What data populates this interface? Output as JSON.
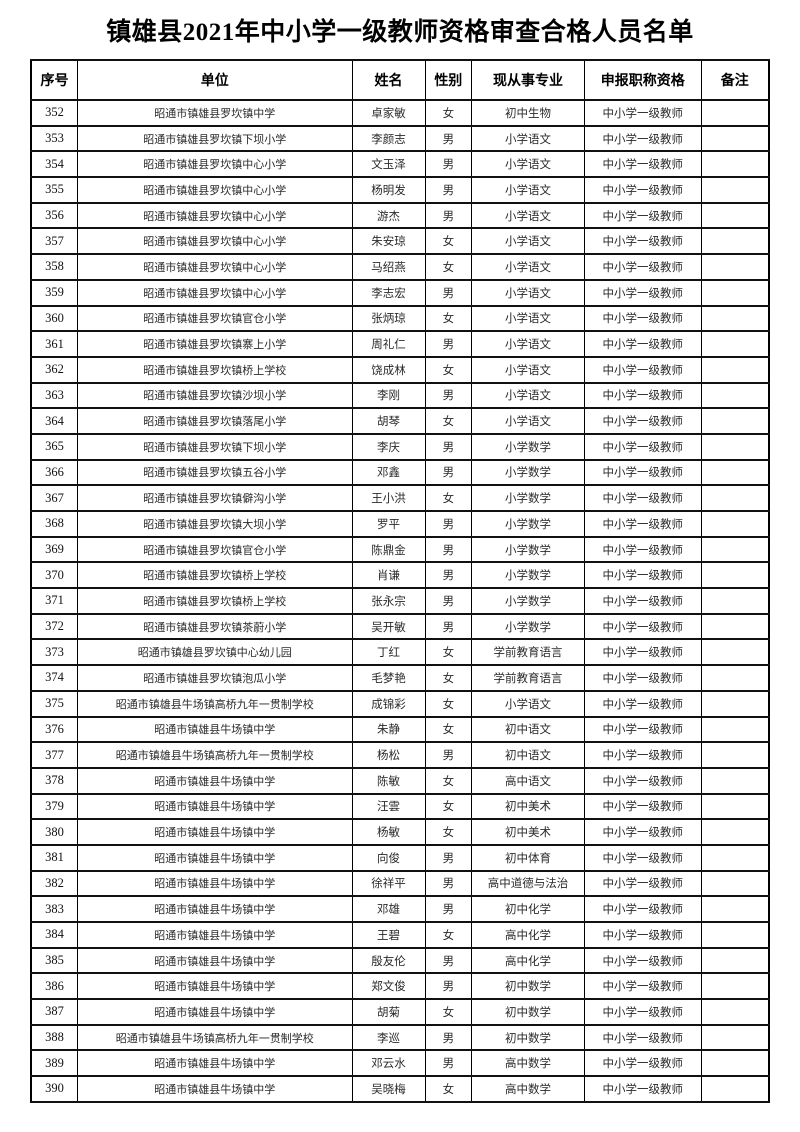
{
  "title": "镇雄县2021年中小学一级教师资格审查合格人员名单",
  "table": {
    "headers": [
      "序号",
      "单位",
      "姓名",
      "性别",
      "现从事专业",
      "申报职称资格",
      "备注"
    ],
    "rows": [
      [
        "352",
        "昭通市镇雄县罗坎镇中学",
        "卓家敏",
        "女",
        "初中生物",
        "中小学一级教师",
        ""
      ],
      [
        "353",
        "昭通市镇雄县罗坎镇下坝小学",
        "李颜志",
        "男",
        "小学语文",
        "中小学一级教师",
        ""
      ],
      [
        "354",
        "昭通市镇雄县罗坎镇中心小学",
        "文玉泽",
        "男",
        "小学语文",
        "中小学一级教师",
        ""
      ],
      [
        "355",
        "昭通市镇雄县罗坎镇中心小学",
        "杨明发",
        "男",
        "小学语文",
        "中小学一级教师",
        ""
      ],
      [
        "356",
        "昭通市镇雄县罗坎镇中心小学",
        "游杰",
        "男",
        "小学语文",
        "中小学一级教师",
        ""
      ],
      [
        "357",
        "昭通市镇雄县罗坎镇中心小学",
        "朱安琼",
        "女",
        "小学语文",
        "中小学一级教师",
        ""
      ],
      [
        "358",
        "昭通市镇雄县罗坎镇中心小学",
        "马绍燕",
        "女",
        "小学语文",
        "中小学一级教师",
        ""
      ],
      [
        "359",
        "昭通市镇雄县罗坎镇中心小学",
        "李志宏",
        "男",
        "小学语文",
        "中小学一级教师",
        ""
      ],
      [
        "360",
        "昭通市镇雄县罗坎镇官仓小学",
        "张炳琼",
        "女",
        "小学语文",
        "中小学一级教师",
        ""
      ],
      [
        "361",
        "昭通市镇雄县罗坎镇寨上小学",
        "周礼仁",
        "男",
        "小学语文",
        "中小学一级教师",
        ""
      ],
      [
        "362",
        "昭通市镇雄县罗坎镇桥上学校",
        "饶成林",
        "女",
        "小学语文",
        "中小学一级教师",
        ""
      ],
      [
        "363",
        "昭通市镇雄县罗坎镇沙坝小学",
        "李刚",
        "男",
        "小学语文",
        "中小学一级教师",
        ""
      ],
      [
        "364",
        "昭通市镇雄县罗坎镇落尾小学",
        "胡琴",
        "女",
        "小学语文",
        "中小学一级教师",
        ""
      ],
      [
        "365",
        "昭通市镇雄县罗坎镇下坝小学",
        "李庆",
        "男",
        "小学数学",
        "中小学一级教师",
        ""
      ],
      [
        "366",
        "昭通市镇雄县罗坎镇五谷小学",
        "邓鑫",
        "男",
        "小学数学",
        "中小学一级教师",
        ""
      ],
      [
        "367",
        "昭通市镇雄县罗坎镇僻沟小学",
        "王小洪",
        "女",
        "小学数学",
        "中小学一级教师",
        ""
      ],
      [
        "368",
        "昭通市镇雄县罗坎镇大坝小学",
        "罗平",
        "男",
        "小学数学",
        "中小学一级教师",
        ""
      ],
      [
        "369",
        "昭通市镇雄县罗坎镇官仓小学",
        "陈鼎金",
        "男",
        "小学数学",
        "中小学一级教师",
        ""
      ],
      [
        "370",
        "昭通市镇雄县罗坎镇桥上学校",
        "肖谦",
        "男",
        "小学数学",
        "中小学一级教师",
        ""
      ],
      [
        "371",
        "昭通市镇雄县罗坎镇桥上学校",
        "张永宗",
        "男",
        "小学数学",
        "中小学一级教师",
        ""
      ],
      [
        "372",
        "昭通市镇雄县罗坎镇茶蔚小学",
        "吴开敏",
        "男",
        "小学数学",
        "中小学一级教师",
        ""
      ],
      [
        "373",
        "昭通市镇雄县罗坎镇中心幼儿园",
        "丁红",
        "女",
        "学前教育语言",
        "中小学一级教师",
        ""
      ],
      [
        "374",
        "昭通市镇雄县罗坎镇泡瓜小学",
        "毛梦艳",
        "女",
        "学前教育语言",
        "中小学一级教师",
        ""
      ],
      [
        "375",
        "昭通市镇雄县牛场镇高桥九年一贯制学校",
        "成锦彩",
        "女",
        "小学语文",
        "中小学一级教师",
        ""
      ],
      [
        "376",
        "昭通市镇雄县牛场镇中学",
        "朱静",
        "女",
        "初中语文",
        "中小学一级教师",
        ""
      ],
      [
        "377",
        "昭通市镇雄县牛场镇高桥九年一贯制学校",
        "杨松",
        "男",
        "初中语文",
        "中小学一级教师",
        ""
      ],
      [
        "378",
        "昭通市镇雄县牛场镇中学",
        "陈敏",
        "女",
        "高中语文",
        "中小学一级教师",
        ""
      ],
      [
        "379",
        "昭通市镇雄县牛场镇中学",
        "汪雲",
        "女",
        "初中美术",
        "中小学一级教师",
        ""
      ],
      [
        "380",
        "昭通市镇雄县牛场镇中学",
        "杨敏",
        "女",
        "初中美术",
        "中小学一级教师",
        ""
      ],
      [
        "381",
        "昭通市镇雄县牛场镇中学",
        "向俊",
        "男",
        "初中体育",
        "中小学一级教师",
        ""
      ],
      [
        "382",
        "昭通市镇雄县牛场镇中学",
        "徐祥平",
        "男",
        "高中道德与法治",
        "中小学一级教师",
        ""
      ],
      [
        "383",
        "昭通市镇雄县牛场镇中学",
        "邓雄",
        "男",
        "初中化学",
        "中小学一级教师",
        ""
      ],
      [
        "384",
        "昭通市镇雄县牛场镇中学",
        "王碧",
        "女",
        "高中化学",
        "中小学一级教师",
        ""
      ],
      [
        "385",
        "昭通市镇雄县牛场镇中学",
        "殷友伦",
        "男",
        "高中化学",
        "中小学一级教师",
        ""
      ],
      [
        "386",
        "昭通市镇雄县牛场镇中学",
        "郑文俊",
        "男",
        "初中数学",
        "中小学一级教师",
        ""
      ],
      [
        "387",
        "昭通市镇雄县牛场镇中学",
        "胡菊",
        "女",
        "初中数学",
        "中小学一级教师",
        ""
      ],
      [
        "388",
        "昭通市镇雄县牛场镇高桥九年一贯制学校",
        "李巡",
        "男",
        "初中数学",
        "中小学一级教师",
        ""
      ],
      [
        "389",
        "昭通市镇雄县牛场镇中学",
        "邓云水",
        "男",
        "高中数学",
        "中小学一级教师",
        ""
      ],
      [
        "390",
        "昭通市镇雄县牛场镇中学",
        "吴晓梅",
        "女",
        "高中数学",
        "中小学一级教师",
        ""
      ]
    ]
  }
}
